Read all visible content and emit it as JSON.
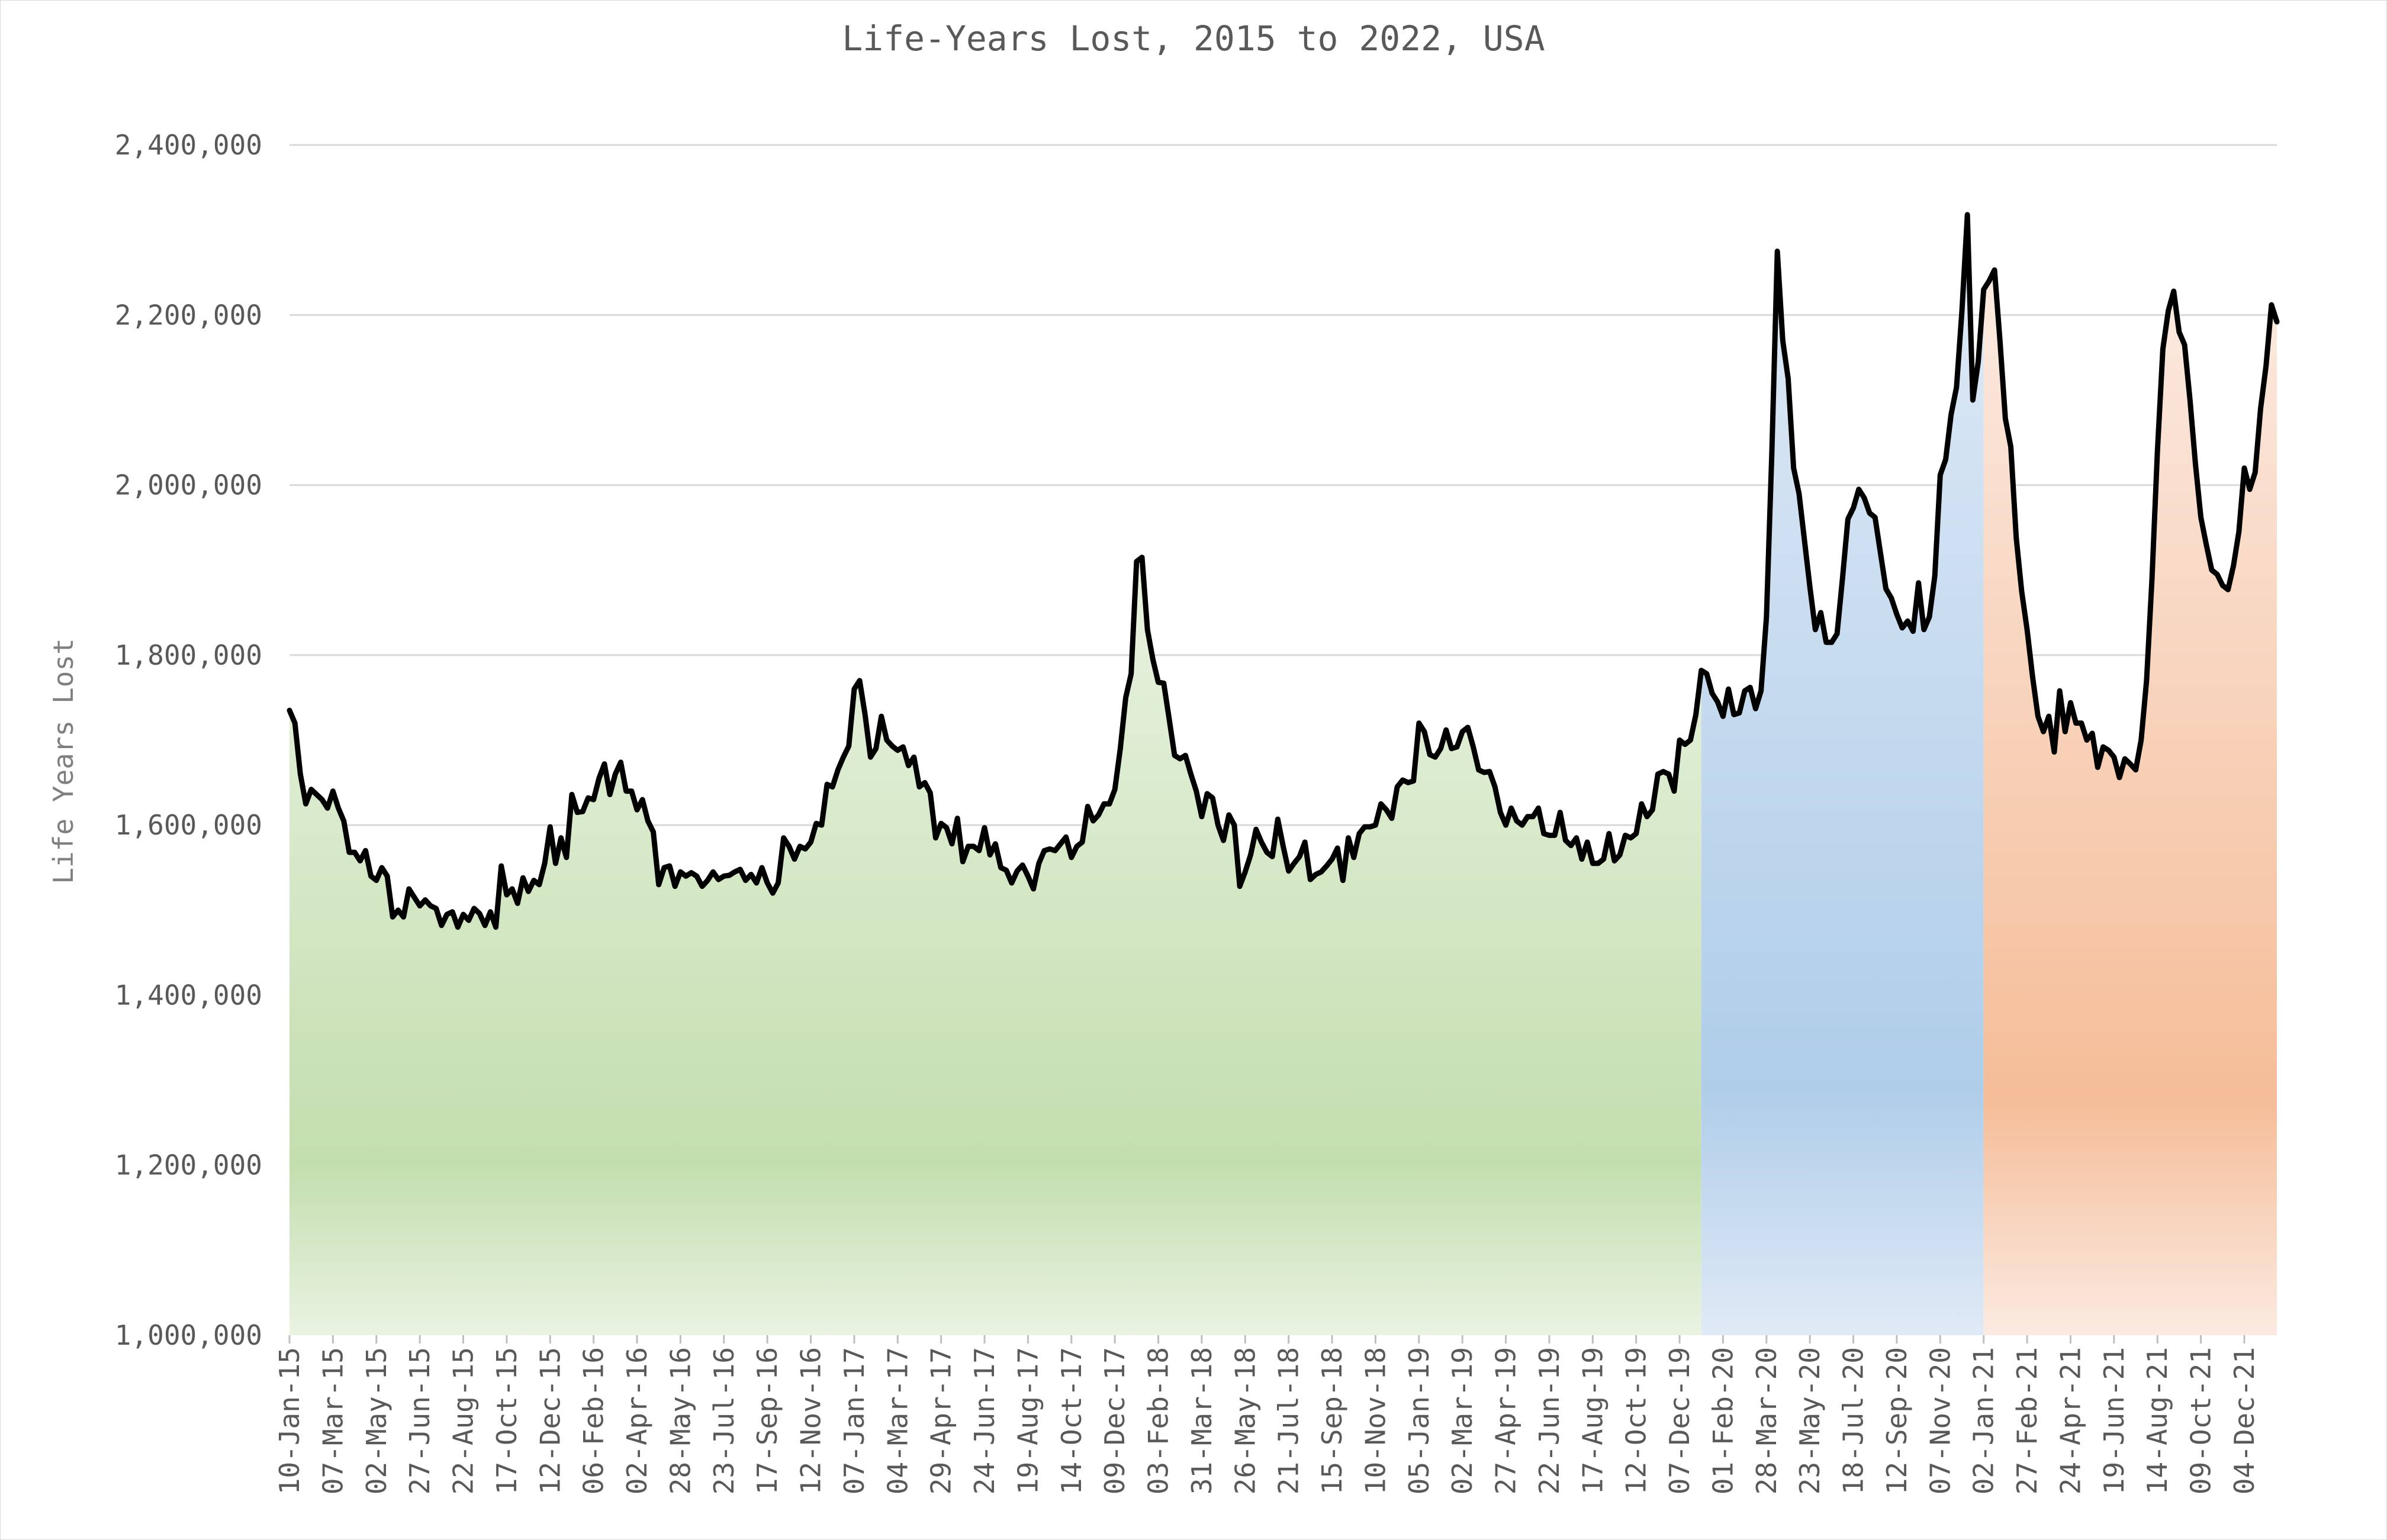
{
  "chart_data": {
    "type": "area",
    "title": "Life-Years Lost, 2015 to 2022, USA",
    "xlabel": "",
    "ylabel": "Life Years Lost",
    "ylim": [
      1000000,
      2400000
    ],
    "y_ticks": [
      1000000,
      1200000,
      1400000,
      1600000,
      1800000,
      2000000,
      2200000,
      2400000
    ],
    "y_tick_labels": [
      "1,000,000",
      "1,200,000",
      "1,400,000",
      "1,600,000",
      "1,800,000",
      "2,000,000",
      "2,200,000",
      "2,400,000"
    ],
    "grid": true,
    "legend": "none",
    "x_tick_labels": [
      "10-Jan-15",
      "07-Mar-15",
      "02-May-15",
      "27-Jun-15",
      "22-Aug-15",
      "17-Oct-15",
      "12-Dec-15",
      "06-Feb-16",
      "02-Apr-16",
      "28-May-16",
      "23-Jul-16",
      "17-Sep-16",
      "12-Nov-16",
      "07-Jan-17",
      "04-Mar-17",
      "29-Apr-17",
      "24-Jun-17",
      "19-Aug-17",
      "14-Oct-17",
      "09-Dec-17",
      "03-Feb-18",
      "31-Mar-18",
      "26-May-18",
      "21-Jul-18",
      "15-Sep-18",
      "10-Nov-18",
      "05-Jan-19",
      "02-Mar-19",
      "27-Apr-19",
      "22-Jun-19",
      "17-Aug-19",
      "12-Oct-19",
      "07-Dec-19",
      "01-Feb-20",
      "28-Mar-20",
      "23-May-20",
      "18-Jul-20",
      "12-Sep-20",
      "07-Nov-20",
      "02-Jan-21",
      "27-Feb-21",
      "24-Apr-21",
      "19-Jun-21",
      "14-Aug-21",
      "09-Oct-21",
      "04-Dec-21"
    ],
    "weeks": 364,
    "line_color": "#000000",
    "fill_colors": {
      "2015-2019": [
        "#eaf3e2",
        "#c3deae"
      ],
      "2020": [
        "#e0eaf6",
        "#afcde9"
      ],
      "2021": [
        "#fbeae1",
        "#f5bd98"
      ]
    },
    "series": [
      {
        "values": [
          1735000,
          1720000,
          1660000,
          1625000,
          1642000,
          1636000,
          1630000,
          1620000,
          1640000,
          1620000,
          1605000,
          1568000,
          1568000,
          1558000,
          1570000,
          1540000,
          1535000,
          1550000,
          1540000,
          1492000,
          1500000,
          1492000,
          1525000,
          1515000,
          1505000,
          1512000,
          1505000,
          1502000,
          1482000,
          1495000,
          1498000,
          1480000,
          1495000,
          1488000,
          1502000,
          1496000,
          1482000,
          1498000,
          1480000,
          1552000,
          1518000,
          1525000,
          1508000,
          1538000,
          1522000,
          1535000,
          1530000,
          1555000,
          1598000,
          1555000,
          1585000,
          1562000,
          1636000,
          1615000,
          1616000,
          1632000,
          1630000,
          1655000,
          1672000,
          1636000,
          1660000,
          1674000,
          1640000,
          1640000,
          1618000,
          1630000,
          1605000,
          1592000,
          1530000,
          1550000,
          1552000,
          1528000,
          1545000,
          1540000,
          1544000,
          1540000,
          1528000,
          1535000,
          1545000,
          1536000,
          1540000,
          1541000,
          1545000,
          1548000,
          1535000,
          1542000,
          1532000,
          1550000,
          1532000,
          1520000,
          1532000,
          1585000,
          1575000,
          1560000,
          1575000,
          1572000,
          1580000,
          1602000,
          1600000,
          1648000,
          1645000,
          1665000,
          1680000,
          1693000,
          1760000,
          1770000,
          1730000,
          1680000,
          1690000,
          1728000,
          1700000,
          1693000,
          1688000,
          1692000,
          1670000,
          1680000,
          1645000,
          1650000,
          1638000,
          1585000,
          1602000,
          1597000,
          1578000,
          1608000,
          1557000,
          1575000,
          1575000,
          1570000,
          1597000,
          1565000,
          1578000,
          1550000,
          1547000,
          1532000,
          1546000,
          1553000,
          1540000,
          1525000,
          1555000,
          1570000,
          1572000,
          1570000,
          1578000,
          1586000,
          1562000,
          1575000,
          1580000,
          1622000,
          1605000,
          1612000,
          1625000,
          1625000,
          1642000,
          1690000,
          1750000,
          1778000,
          1910000,
          1915000,
          1830000,
          1795000,
          1768000,
          1767000,
          1725000,
          1682000,
          1678000,
          1682000,
          1660000,
          1640000,
          1610000,
          1637000,
          1632000,
          1600000,
          1582000,
          1612000,
          1600000,
          1528000,
          1545000,
          1565000,
          1595000,
          1580000,
          1568000,
          1563000,
          1607000,
          1575000,
          1546000,
          1555000,
          1563000,
          1580000,
          1536000,
          1542000,
          1545000,
          1552000,
          1560000,
          1573000,
          1535000,
          1585000,
          1562000,
          1590000,
          1598000,
          1598000,
          1600000,
          1625000,
          1618000,
          1608000,
          1645000,
          1653000,
          1650000,
          1652000,
          1720000,
          1710000,
          1683000,
          1680000,
          1690000,
          1712000,
          1690000,
          1692000,
          1710000,
          1715000,
          1692000,
          1665000,
          1662000,
          1663000,
          1645000,
          1615000,
          1600000,
          1620000,
          1605000,
          1600000,
          1610000,
          1610000,
          1620000,
          1590000,
          1588000,
          1588000,
          1615000,
          1582000,
          1576000,
          1585000,
          1560000,
          1580000,
          1555000,
          1555000,
          1560000,
          1590000,
          1558000,
          1565000,
          1588000,
          1585000,
          1590000,
          1625000,
          1610000,
          1618000,
          1660000,
          1663000,
          1660000,
          1640000,
          1700000,
          1695000,
          1700000,
          1730000,
          1782000,
          1778000,
          1755000,
          1745000,
          1728000,
          1760000,
          1730000,
          1732000,
          1758000,
          1762000,
          1737000,
          1758000,
          1845000,
          2040000,
          2275000,
          2170000,
          2125000,
          2020000,
          1990000,
          1935000,
          1880000,
          1830000,
          1850000,
          1815000,
          1815000,
          1825000,
          1890000,
          1960000,
          1973000,
          1995000,
          1985000,
          1967000,
          1962000,
          1920000,
          1878000,
          1867000,
          1848000,
          1832000,
          1840000,
          1828000,
          1885000,
          1830000,
          1845000,
          1893000,
          2012000,
          2030000,
          2083000,
          2115000,
          2205000,
          2318000,
          2100000,
          2145000,
          2230000,
          2240000,
          2253000,
          2170000,
          2078000,
          2045000,
          1938000,
          1875000,
          1830000,
          1775000,
          1728000,
          1710000,
          1728000,
          1686000,
          1758000,
          1710000,
          1744000,
          1720000,
          1720000,
          1700000,
          1708000,
          1668000,
          1692000,
          1688000,
          1680000,
          1656000,
          1678000,
          1672000,
          1665000,
          1700000,
          1770000,
          1890000,
          2040000,
          2160000,
          2205000,
          2228000,
          2180000,
          2165000,
          2100000,
          2025000,
          1962000,
          1930000,
          1900000,
          1895000,
          1882000,
          1877000,
          1905000,
          1945000,
          2020000,
          1995000,
          2015000,
          2090000,
          2140000,
          2212000,
          2192000
        ]
      }
    ]
  }
}
